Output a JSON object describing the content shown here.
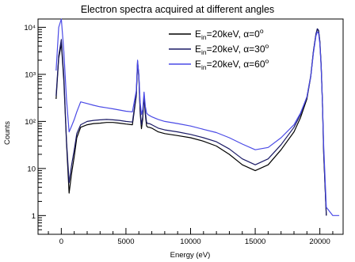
{
  "chart_data": {
    "type": "line",
    "title": "Electron spectra acquired at different angles",
    "xlabel": "Energy (eV)",
    "ylabel": "Counts",
    "xlim": [
      -1800,
      21800
    ],
    "ylim": [
      0.4,
      15000
    ],
    "y_scale": "log",
    "grid": false,
    "legend_position": "top-right",
    "x_ticks": [
      {
        "value": 0,
        "label": "0"
      },
      {
        "value": 5000,
        "label": "5000"
      },
      {
        "value": 10000,
        "label": "10000"
      },
      {
        "value": 15000,
        "label": "15000"
      },
      {
        "value": 20000,
        "label": "20000"
      }
    ],
    "y_ticks": [
      {
        "value": 1,
        "label": "1"
      },
      {
        "value": 10,
        "label": "10"
      },
      {
        "value": 100,
        "label": "10²"
      },
      {
        "value": 1000,
        "label": "10³"
      },
      {
        "value": 10000,
        "label": "10⁴"
      }
    ],
    "series": [
      {
        "legend": {
          "base": "E",
          "sub": "in",
          "rest": "=20keV, α=0",
          "sup": "o"
        },
        "color": "#000000",
        "x": [
          -400,
          -200,
          0,
          200,
          400,
          600,
          800,
          1000,
          1200,
          1500,
          2000,
          2500,
          3000,
          3500,
          4000,
          4500,
          5000,
          5500,
          5800,
          5900,
          6000,
          6100,
          6200,
          6300,
          6400,
          6500,
          6600,
          6700,
          6800,
          7000,
          7500,
          8000,
          9000,
          10000,
          11000,
          12000,
          13000,
          14000,
          15000,
          16000,
          17000,
          18000,
          18500,
          19000,
          19300,
          19500,
          19700,
          19800,
          19900,
          20000,
          20100,
          20200,
          20300,
          20500
        ],
        "y": [
          300,
          2200,
          4500,
          700,
          35,
          3,
          8,
          18,
          45,
          75,
          85,
          90,
          92,
          95,
          95,
          92,
          88,
          85,
          350,
          1800,
          900,
          150,
          70,
          110,
          350,
          140,
          80,
          75,
          75,
          72,
          60,
          55,
          50,
          45,
          38,
          30,
          20,
          12,
          9,
          12,
          25,
          60,
          120,
          300,
          900,
          3000,
          7000,
          9000,
          8500,
          5000,
          1500,
          250,
          20,
          1
        ]
      },
      {
        "legend": {
          "base": "E",
          "sub": "in",
          "rest": "=20keV, α=30",
          "sup": "o"
        },
        "color": "#1a1a66",
        "x": [
          -400,
          -200,
          0,
          200,
          400,
          600,
          800,
          1000,
          1200,
          1500,
          2000,
          2500,
          3000,
          3500,
          4000,
          4500,
          5000,
          5500,
          5800,
          5900,
          6000,
          6100,
          6200,
          6300,
          6400,
          6500,
          6600,
          6700,
          6800,
          7000,
          7500,
          8000,
          9000,
          10000,
          11000,
          12000,
          13000,
          14000,
          15000,
          16000,
          17000,
          18000,
          18500,
          19000,
          19300,
          19500,
          19700,
          19800,
          19900,
          20000,
          20100,
          20200,
          20300,
          20500
        ],
        "y": [
          350,
          2500,
          5500,
          900,
          40,
          5,
          12,
          25,
          55,
          85,
          100,
          105,
          108,
          110,
          108,
          105,
          100,
          97,
          380,
          1900,
          950,
          170,
          85,
          125,
          380,
          160,
          95,
          90,
          90,
          85,
          72,
          66,
          60,
          53,
          45,
          37,
          26,
          16,
          12,
          16,
          32,
          75,
          140,
          330,
          950,
          3100,
          7200,
          9300,
          8700,
          5200,
          1600,
          260,
          22,
          1
        ]
      },
      {
        "legend": {
          "base": "E",
          "sub": "in",
          "rest": "=20keV, α=60",
          "sup": "o"
        },
        "color": "#4a4ae6",
        "x": [
          -400,
          -200,
          0,
          200,
          400,
          600,
          800,
          1000,
          1200,
          1500,
          2000,
          2500,
          3000,
          3500,
          4000,
          4500,
          5000,
          5500,
          5800,
          5900,
          6000,
          6100,
          6200,
          6300,
          6400,
          6500,
          6600,
          6700,
          6800,
          7000,
          7500,
          8000,
          9000,
          10000,
          11000,
          12000,
          13000,
          14000,
          15000,
          16000,
          17000,
          18000,
          18500,
          19000,
          19300,
          19500,
          19700,
          19800,
          19900,
          20000,
          20100,
          20200,
          20300,
          20500,
          21000,
          21500
        ],
        "y": [
          1200,
          10000,
          15000,
          3000,
          300,
          60,
          80,
          110,
          160,
          260,
          240,
          220,
          205,
          195,
          185,
          175,
          165,
          160,
          450,
          2000,
          1000,
          250,
          140,
          180,
          420,
          210,
          150,
          140,
          135,
          125,
          110,
          100,
          90,
          80,
          68,
          58,
          45,
          33,
          25,
          28,
          45,
          85,
          150,
          330,
          900,
          2800,
          6500,
          8000,
          7500,
          4500,
          1400,
          250,
          30,
          1.5,
          1,
          1
        ]
      }
    ]
  }
}
